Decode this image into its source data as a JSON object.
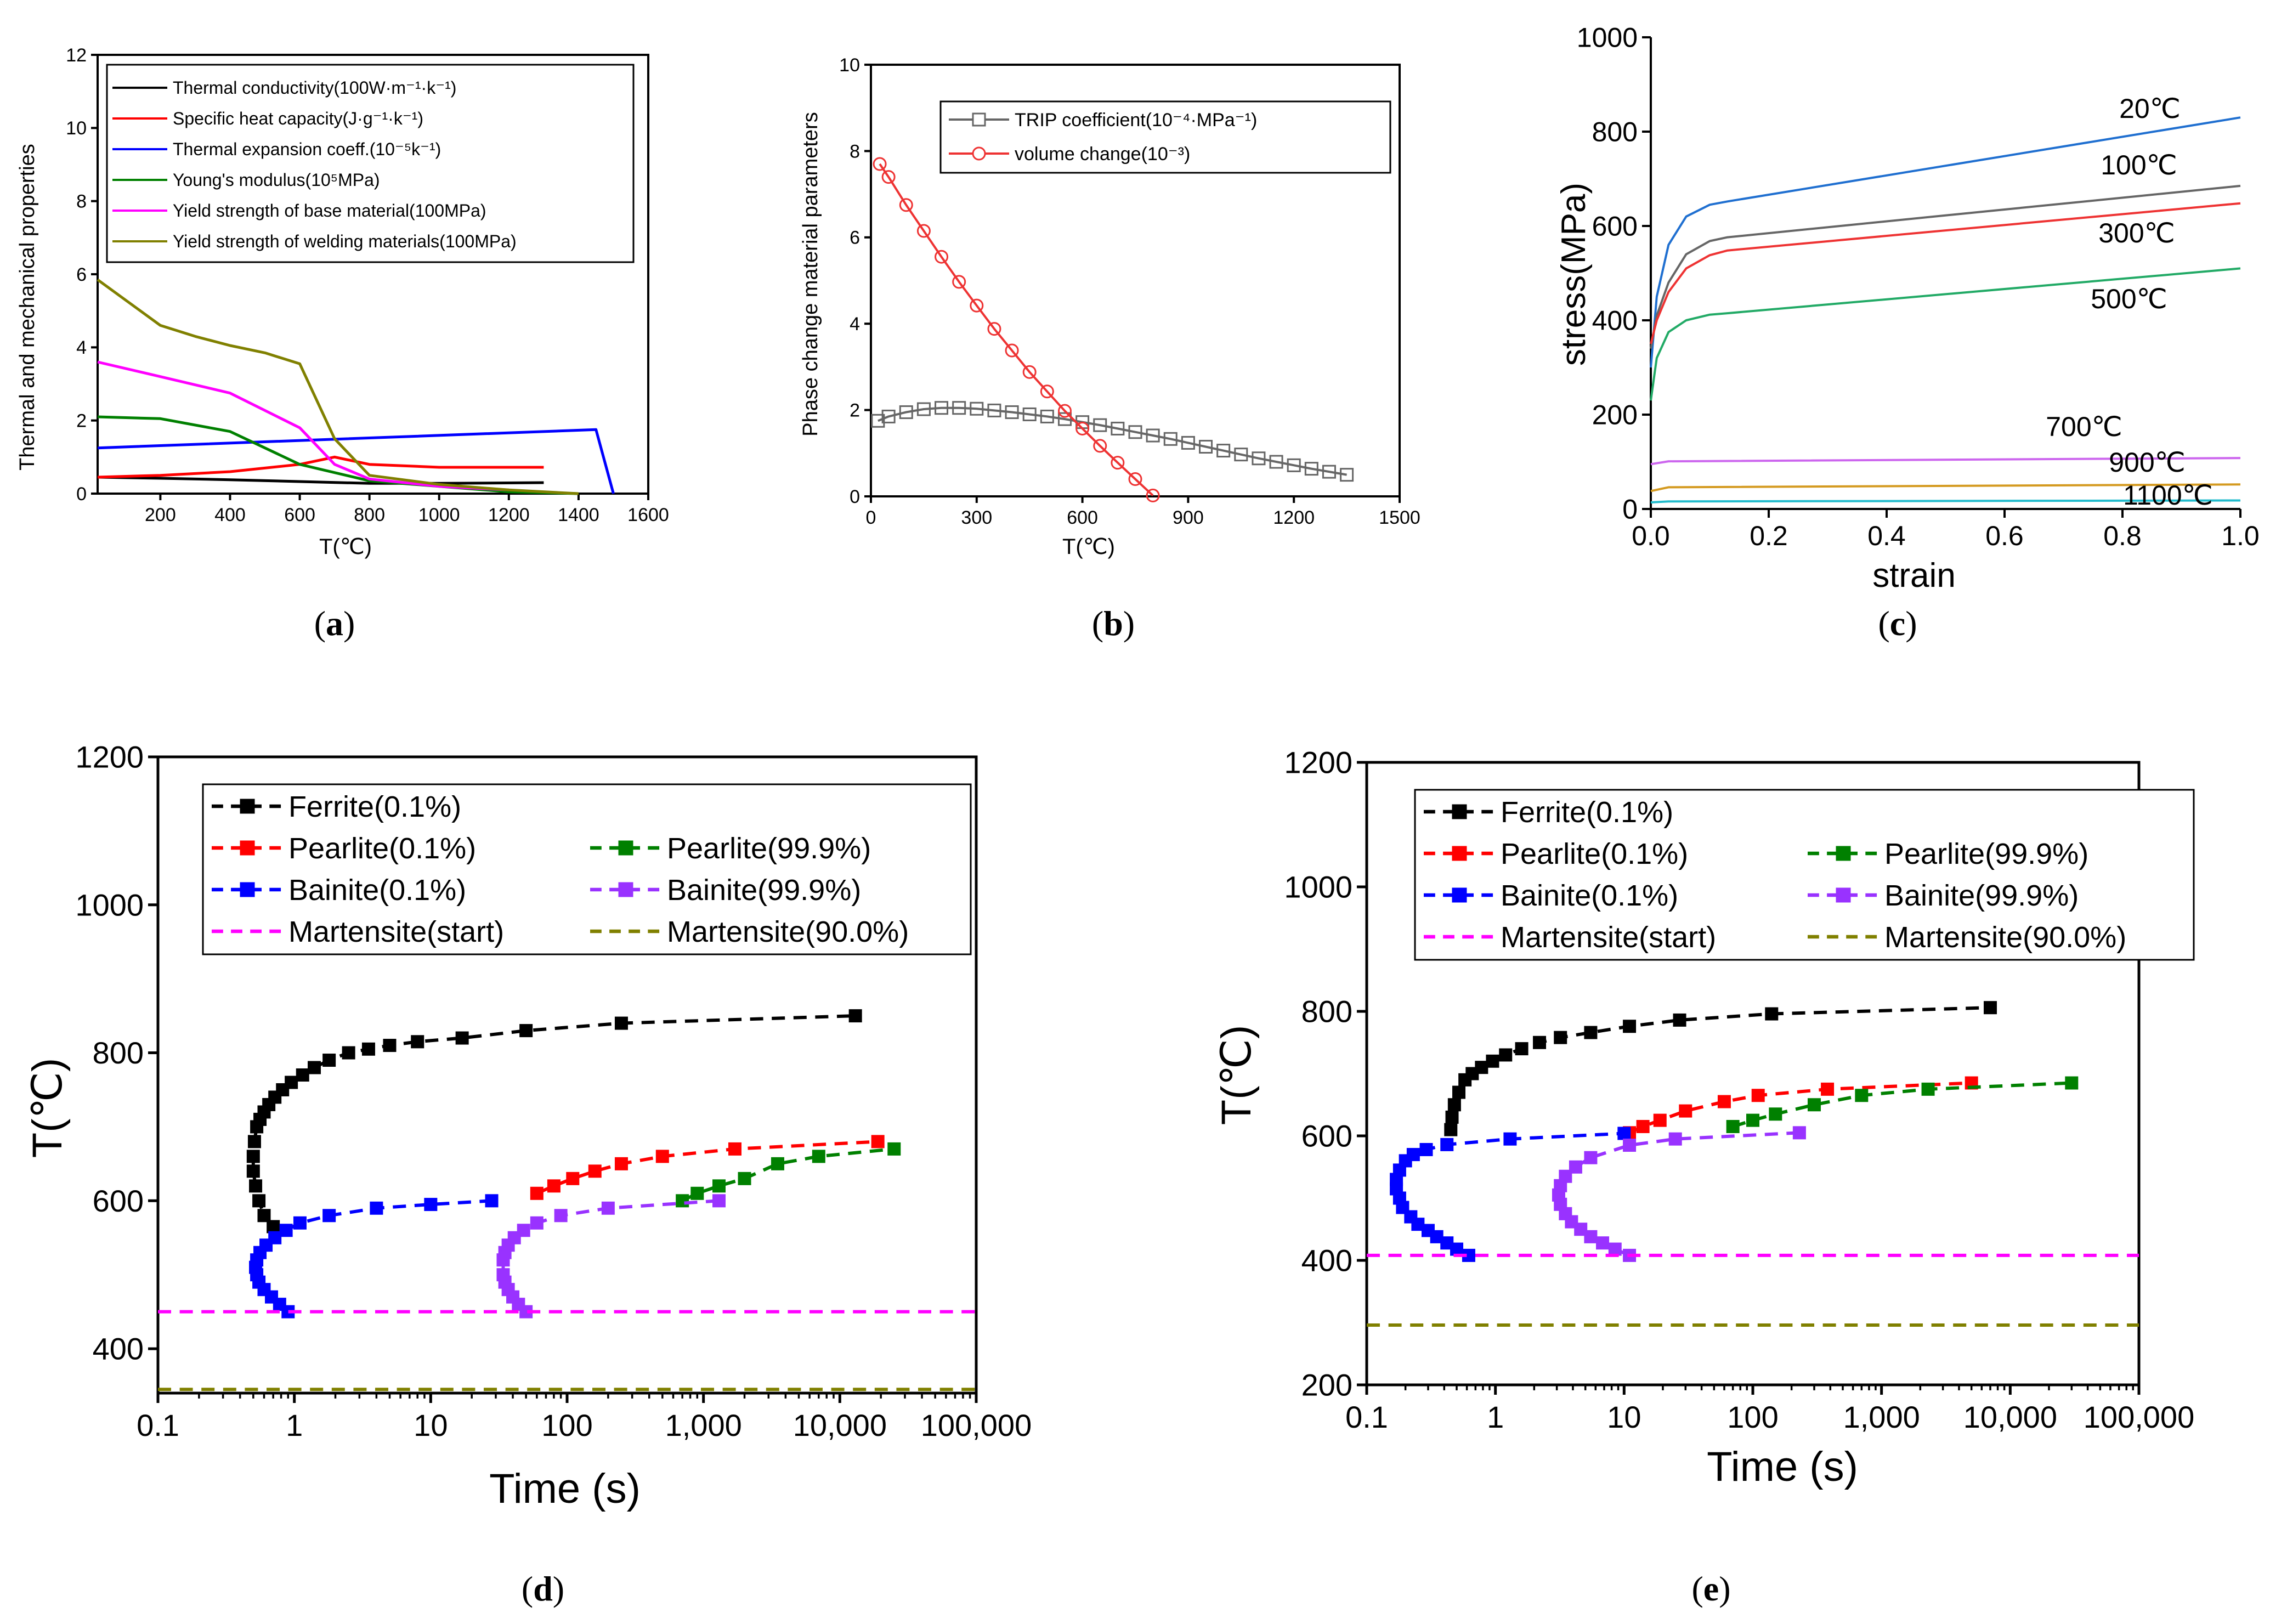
{
  "colors": {
    "black": "#000000",
    "red": "#ff0000",
    "blue": "#0000ff",
    "green": "#008000",
    "magenta": "#ff00ff",
    "olive": "#808000",
    "purple": "#9932ff",
    "grey": "#666666",
    "lineRed": "#ee3333"
  },
  "captions": {
    "a": "a",
    "b": "b",
    "c": "c",
    "d": "d",
    "e": "e"
  },
  "chart_data": [
    {
      "id": "a",
      "type": "line",
      "xlabel": "T(℃)",
      "ylabel": "Thermal and mechanical properties",
      "xlim": [
        20,
        1600
      ],
      "ylim": [
        0,
        12
      ],
      "xticks": [
        200,
        400,
        600,
        800,
        1000,
        1200,
        1400,
        1600
      ],
      "yticks": [
        0,
        2,
        4,
        6,
        8,
        10,
        12
      ],
      "series": [
        {
          "name": "Thermal conductivity(100W·m⁻¹·k⁻¹)",
          "color": "#000000",
          "x": [
            20,
            200,
            400,
            600,
            800,
            1000,
            1300
          ],
          "y": [
            0.45,
            0.42,
            0.38,
            0.33,
            0.28,
            0.28,
            0.3
          ]
        },
        {
          "name": "Specific heat capacity(J·g⁻¹·k⁻¹)",
          "color": "#ff0000",
          "x": [
            20,
            200,
            400,
            600,
            700,
            800,
            1000,
            1300
          ],
          "y": [
            0.45,
            0.5,
            0.6,
            0.8,
            1.0,
            0.8,
            0.72,
            0.72
          ]
        },
        {
          "name": "Thermal expansion coeff.(10⁻⁵k⁻¹)",
          "color": "#0000ff",
          "x": [
            20,
            1450,
            1500
          ],
          "y": [
            1.25,
            1.75,
            0
          ]
        },
        {
          "name": "Young's modulus(10⁵MPa)",
          "color": "#008000",
          "x": [
            20,
            200,
            400,
            600,
            800,
            1000,
            1200,
            1400
          ],
          "y": [
            2.1,
            2.05,
            1.7,
            0.8,
            0.35,
            0.2,
            0.05,
            0.0
          ]
        },
        {
          "name": "Yield strength of base material(100MPa)",
          "color": "#ff00ff",
          "x": [
            20,
            200,
            400,
            600,
            700,
            800,
            1000,
            1200
          ],
          "y": [
            3.6,
            3.2,
            2.75,
            1.8,
            0.8,
            0.4,
            0.2,
            0.1
          ]
        },
        {
          "name": "Yield strength of welding materials(100MPa)",
          "color": "#808000",
          "x": [
            20,
            200,
            300,
            400,
            500,
            600,
            700,
            800,
            1000,
            1200,
            1400
          ],
          "y": [
            5.85,
            4.6,
            4.3,
            4.05,
            3.85,
            3.55,
            1.5,
            0.5,
            0.25,
            0.1,
            0.0
          ]
        }
      ]
    },
    {
      "id": "b",
      "type": "line",
      "xlabel": "T(℃)",
      "ylabel": "Phase change material parameters",
      "xlim": [
        0,
        1500
      ],
      "ylim": [
        0,
        10
      ],
      "xticks": [
        0,
        300,
        600,
        900,
        1200,
        1500
      ],
      "yticks": [
        0,
        2,
        4,
        6,
        8,
        10
      ],
      "series": [
        {
          "name": "TRIP coefficient(10⁻⁴·MPa⁻¹)",
          "color": "#666666",
          "marker": "square",
          "x": [
            20,
            50,
            100,
            150,
            200,
            250,
            300,
            350,
            400,
            450,
            500,
            550,
            600,
            650,
            700,
            750,
            800,
            850,
            900,
            950,
            1000,
            1050,
            1100,
            1150,
            1200,
            1250,
            1300,
            1350
          ],
          "y": [
            1.75,
            1.85,
            1.95,
            2.02,
            2.05,
            2.05,
            2.03,
            1.99,
            1.95,
            1.9,
            1.85,
            1.79,
            1.72,
            1.65,
            1.57,
            1.49,
            1.41,
            1.33,
            1.24,
            1.15,
            1.06,
            0.97,
            0.88,
            0.8,
            0.72,
            0.64,
            0.57,
            0.5
          ]
        },
        {
          "name": "volume change(10⁻³)",
          "color": "#ee3333",
          "marker": "circle",
          "x": [
            25,
            50,
            100,
            150,
            200,
            250,
            300,
            350,
            400,
            450,
            500,
            550,
            600,
            650,
            700,
            750,
            800
          ],
          "y": [
            7.7,
            7.4,
            6.75,
            6.15,
            5.55,
            4.97,
            4.42,
            3.88,
            3.38,
            2.88,
            2.43,
            1.98,
            1.57,
            1.17,
            0.78,
            0.4,
            0.02
          ]
        }
      ]
    },
    {
      "id": "c",
      "type": "line",
      "xlabel": "strain",
      "ylabel": "stress(MPa)",
      "xlim": [
        0,
        1
      ],
      "ylim": [
        0,
        1000
      ],
      "xticks": [
        "0.0",
        "0.2",
        "0.4",
        "0.6",
        "0.8",
        "1.0"
      ],
      "yticks": [
        0,
        200,
        400,
        600,
        800,
        1000
      ],
      "series": [
        {
          "name": "20℃",
          "color": "#1f6fd0",
          "x": [
            0,
            0.01,
            0.03,
            0.06,
            0.1,
            0.13,
            1.0
          ],
          "y": [
            300,
            450,
            560,
            620,
            645,
            652,
            830
          ]
        },
        {
          "name": "100℃",
          "color": "#666666",
          "x": [
            0,
            0.01,
            0.03,
            0.06,
            0.1,
            0.13,
            1.0
          ],
          "y": [
            340,
            410,
            480,
            540,
            568,
            576,
            685
          ]
        },
        {
          "name": "300℃",
          "color": "#ee3333",
          "x": [
            0,
            0.01,
            0.03,
            0.06,
            0.1,
            0.13,
            1.0
          ],
          "y": [
            350,
            400,
            460,
            510,
            538,
            548,
            648
          ]
        },
        {
          "name": "500℃",
          "color": "#22aa66",
          "x": [
            0,
            0.01,
            0.03,
            0.06,
            0.1,
            0.13,
            1.0
          ],
          "y": [
            230,
            320,
            375,
            400,
            412,
            415,
            510
          ]
        },
        {
          "name": "700℃",
          "color": "#cc66ee",
          "x": [
            0,
            0.03,
            1.0
          ],
          "y": [
            95,
            101,
            108
          ]
        },
        {
          "name": "900℃",
          "color": "#d49a20",
          "x": [
            0,
            0.03,
            1.0
          ],
          "y": [
            38,
            46,
            52
          ]
        },
        {
          "name": "1100℃",
          "color": "#22bbcc",
          "x": [
            0,
            0.03,
            1.0
          ],
          "y": [
            14,
            16,
            18
          ]
        }
      ]
    },
    {
      "id": "d",
      "type": "line",
      "xlabel": "Time (s)",
      "ylabel": "T(℃)",
      "xscale": "log",
      "xlim": [
        0.1,
        100000
      ],
      "ylim": [
        340,
        1200
      ],
      "xticks": [
        "0.1",
        "1",
        "10",
        "100",
        "1,000",
        "10,000",
        "100,000"
      ],
      "yticks": [
        400,
        600,
        800,
        1000,
        1200
      ],
      "series": [
        {
          "name": "Ferrite(0.1%)",
          "color": "#000000",
          "dash": true,
          "marker": "square",
          "x": [
            0.7,
            0.6,
            0.55,
            0.52,
            0.5,
            0.5,
            0.51,
            0.53,
            0.56,
            0.6,
            0.65,
            0.72,
            0.82,
            0.95,
            1.15,
            1.4,
            1.8,
            2.5,
            3.5,
            5,
            8,
            17,
            50,
            250,
            13000
          ],
          "y": [
            565,
            580,
            600,
            620,
            640,
            660,
            680,
            700,
            710,
            720,
            730,
            740,
            750,
            760,
            770,
            780,
            790,
            800,
            805,
            810,
            815,
            820,
            830,
            840,
            850
          ]
        },
        {
          "name": "Pearlite(0.1%)",
          "color": "#ff0000",
          "dash": true,
          "marker": "square",
          "x": [
            60,
            80,
            110,
            160,
            250,
            500,
            1700,
            19000
          ],
          "y": [
            610,
            620,
            630,
            640,
            650,
            660,
            670,
            680
          ]
        },
        {
          "name": "Pearlite(99.9%)",
          "color": "#008000",
          "dash": true,
          "marker": "square",
          "x": [
            700,
            900,
            1300,
            2000,
            3500,
            7000,
            25000
          ],
          "y": [
            600,
            610,
            620,
            630,
            650,
            660,
            670
          ]
        },
        {
          "name": "Bainite(0.1%)",
          "color": "#0000ff",
          "dash": true,
          "marker": "square",
          "x": [
            0.9,
            0.78,
            0.68,
            0.6,
            0.55,
            0.53,
            0.52,
            0.53,
            0.56,
            0.62,
            0.72,
            0.87,
            1.1,
            1.8,
            4,
            10,
            28
          ],
          "y": [
            450,
            460,
            470,
            480,
            490,
            500,
            510,
            520,
            530,
            540,
            550,
            560,
            570,
            580,
            590,
            595,
            600
          ]
        },
        {
          "name": "Bainite(99.9%)",
          "color": "#9932ff",
          "dash": true,
          "marker": "square",
          "x": [
            50,
            44,
            40,
            37,
            35,
            34,
            34,
            35,
            37,
            41,
            48,
            60,
            90,
            200,
            1300
          ],
          "y": [
            450,
            460,
            470,
            480,
            490,
            500,
            520,
            530,
            540,
            550,
            560,
            570,
            580,
            590,
            600
          ]
        },
        {
          "name": "Martensite(start)",
          "color": "#ff00ff",
          "dash": true,
          "x": [
            0.1,
            100000
          ],
          "y": [
            450,
            450
          ]
        },
        {
          "name": "Martensite(90.0%)",
          "color": "#808000",
          "dash": true,
          "x": [
            0.1,
            100000
          ],
          "y": [
            345,
            345
          ]
        }
      ]
    },
    {
      "id": "e",
      "type": "line",
      "xlabel": "Time (s)",
      "ylabel": "T(℃)",
      "xscale": "log",
      "xlim": [
        0.1,
        100000
      ],
      "ylim": [
        200,
        1200
      ],
      "xticks": [
        "0.1",
        "1",
        "10",
        "100",
        "1,000",
        "10,000",
        "100,000"
      ],
      "yticks": [
        200,
        400,
        600,
        800,
        1000,
        1200
      ],
      "series": [
        {
          "name": "Ferrite(0.1%)",
          "color": "#000000",
          "dash": true,
          "marker": "square",
          "x": [
            0.45,
            0.46,
            0.48,
            0.52,
            0.58,
            0.66,
            0.78,
            0.95,
            1.2,
            1.6,
            2.2,
            3.2,
            5.5,
            11,
            27,
            140,
            7000
          ],
          "y": [
            610,
            630,
            650,
            670,
            690,
            700,
            710,
            720,
            730,
            740,
            750,
            758,
            766,
            776,
            786,
            796,
            806
          ]
        },
        {
          "name": "Pearlite(0.1%)",
          "color": "#ff0000",
          "dash": true,
          "marker": "square",
          "x": [
            11,
            14,
            19,
            30,
            60,
            110,
            380,
            5000
          ],
          "y": [
            605,
            615,
            625,
            640,
            655,
            665,
            675,
            685
          ]
        },
        {
          "name": "Pearlite(99.9%)",
          "color": "#008000",
          "dash": true,
          "marker": "square",
          "x": [
            70,
            100,
            150,
            300,
            700,
            2300,
            30000
          ],
          "y": [
            615,
            625,
            635,
            650,
            665,
            675,
            685
          ]
        },
        {
          "name": "Bainite(0.1%)",
          "color": "#0000ff",
          "dash": true,
          "marker": "square",
          "x": [
            0.62,
            0.5,
            0.42,
            0.35,
            0.3,
            0.25,
            0.22,
            0.19,
            0.18,
            0.17,
            0.17,
            0.18,
            0.2,
            0.23,
            0.29,
            0.42,
            1.3,
            10
          ],
          "y": [
            408,
            418,
            428,
            438,
            448,
            458,
            470,
            485,
            500,
            515,
            530,
            545,
            560,
            570,
            578,
            586,
            595,
            604
          ]
        },
        {
          "name": "Bainite(99.9%)",
          "color": "#9932ff",
          "dash": true,
          "marker": "square",
          "x": [
            11,
            8.5,
            6.8,
            5.5,
            4.6,
            3.9,
            3.5,
            3.2,
            3.1,
            3.2,
            3.5,
            4.2,
            5.5,
            11,
            25,
            230
          ],
          "y": [
            408,
            418,
            428,
            438,
            450,
            462,
            475,
            490,
            505,
            520,
            535,
            550,
            565,
            585,
            595,
            605
          ]
        },
        {
          "name": "Martensite(start)",
          "color": "#ff00ff",
          "dash": true,
          "x": [
            0.1,
            100000
          ],
          "y": [
            408,
            408
          ]
        },
        {
          "name": "Martensite(90.0%)",
          "color": "#808000",
          "dash": true,
          "x": [
            0.1,
            100000
          ],
          "y": [
            296,
            296
          ]
        }
      ]
    }
  ]
}
